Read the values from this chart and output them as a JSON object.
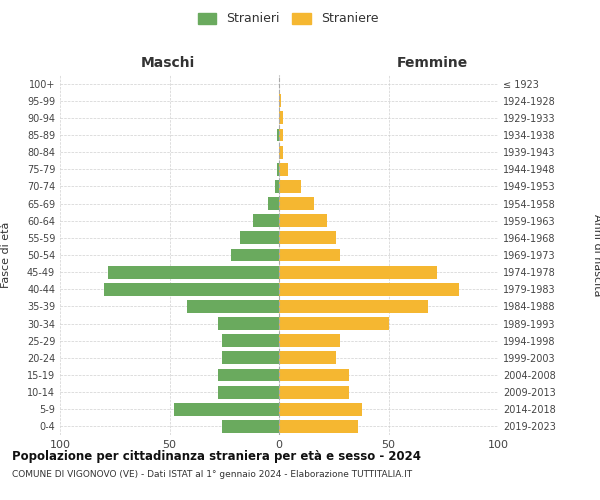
{
  "age_groups": [
    "0-4",
    "5-9",
    "10-14",
    "15-19",
    "20-24",
    "25-29",
    "30-34",
    "35-39",
    "40-44",
    "45-49",
    "50-54",
    "55-59",
    "60-64",
    "65-69",
    "70-74",
    "75-79",
    "80-84",
    "85-89",
    "90-94",
    "95-99",
    "100+"
  ],
  "birth_years": [
    "2019-2023",
    "2014-2018",
    "2009-2013",
    "2004-2008",
    "1999-2003",
    "1994-1998",
    "1989-1993",
    "1984-1988",
    "1979-1983",
    "1974-1978",
    "1969-1973",
    "1964-1968",
    "1959-1963",
    "1954-1958",
    "1949-1953",
    "1944-1948",
    "1939-1943",
    "1934-1938",
    "1929-1933",
    "1924-1928",
    "≤ 1923"
  ],
  "maschi": [
    26,
    48,
    28,
    28,
    26,
    26,
    28,
    42,
    80,
    78,
    22,
    18,
    12,
    5,
    2,
    1,
    0,
    1,
    0,
    0,
    0
  ],
  "femmine": [
    36,
    38,
    32,
    32,
    26,
    28,
    50,
    68,
    82,
    72,
    28,
    26,
    22,
    16,
    10,
    4,
    2,
    2,
    2,
    1,
    0
  ],
  "maschi_color": "#6aaa5e",
  "femmine_color": "#f5b731",
  "background_color": "#ffffff",
  "grid_color": "#cccccc",
  "title": "Popolazione per cittadinanza straniera per età e sesso - 2024",
  "subtitle": "COMUNE DI VIGONOVO (VE) - Dati ISTAT al 1° gennaio 2024 - Elaborazione TUTTITALIA.IT",
  "xlabel_left": "Maschi",
  "xlabel_right": "Femmine",
  "ylabel_left": "Fasce di età",
  "ylabel_right": "Anni di nascita",
  "legend_maschi": "Stranieri",
  "legend_femmine": "Straniere",
  "xlim": 100,
  "xtick_labels": [
    "100",
    "50",
    "0",
    "50",
    "100"
  ]
}
